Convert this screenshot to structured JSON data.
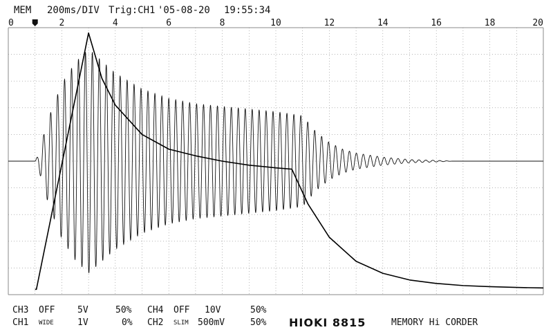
{
  "header": {
    "mode": "MEM",
    "timebase": "200ms/DIV",
    "trigger": "Trig:CH1",
    "date": "'05-08-20",
    "time": "19:55:34"
  },
  "chart_data": {
    "type": "line",
    "title": "",
    "xlabel": "",
    "ylabel": "",
    "x_ticks": [
      "0",
      "2",
      "4",
      "6",
      "8",
      "10",
      "12",
      "14",
      "16",
      "18",
      "20"
    ],
    "xlim": [
      0,
      20
    ],
    "ylim": [
      -5,
      5
    ],
    "grid": true,
    "trigger_position": 1,
    "series": [
      {
        "name": "CH1",
        "kind": "envelope",
        "description_values": {
          "x": [
            1.0,
            1.1,
            1.5,
            2.0,
            2.5,
            3.0,
            4.0,
            5.0,
            6.0,
            7.0,
            8.0,
            9.0,
            10.0,
            11.0,
            11.5,
            12.0,
            12.5,
            13.0,
            14.0,
            15.0,
            16.0,
            16.6,
            20.0
          ],
          "amplitude": [
            0,
            0.2,
            1.6,
            2.9,
            3.7,
            4.2,
            3.3,
            2.7,
            2.35,
            2.15,
            2.05,
            1.95,
            1.85,
            1.7,
            1.1,
            0.7,
            0.45,
            0.3,
            0.15,
            0.06,
            0.03,
            0,
            0
          ],
          "cycles_per_div": 3.85
        }
      },
      {
        "name": "CH2",
        "kind": "line",
        "x": [
          1.0,
          1.05,
          3.0,
          3.5,
          4.0,
          5.0,
          6.0,
          7.0,
          8.0,
          9.0,
          10.0,
          10.6,
          11.2,
          12.0,
          13.0,
          14.0,
          15.0,
          16.0,
          17.0,
          18.0,
          19.0,
          20.0
        ],
        "y": [
          -4.8,
          -4.8,
          4.8,
          3.1,
          2.1,
          1.0,
          0.45,
          0.2,
          0.0,
          -0.15,
          -0.25,
          -0.3,
          -1.6,
          -2.85,
          -3.75,
          -4.2,
          -4.45,
          -4.58,
          -4.66,
          -4.7,
          -4.73,
          -4.75
        ]
      }
    ]
  },
  "footer": {
    "row1": {
      "ch3_label": "CH3",
      "ch3_state": "OFF",
      "ch3_range": "5V",
      "ch3_pos": "50%",
      "ch4_label": "CH4",
      "ch4_state": "OFF",
      "ch4_range": "10V",
      "ch4_pos": "50%"
    },
    "row2": {
      "ch1_label": "CH1",
      "ch1_state": "WIDE",
      "ch1_range": "1V",
      "ch1_pos": "0%",
      "ch2_label": "CH2",
      "ch2_state": "SLIM",
      "ch2_range": "500mV",
      "ch2_pos": "50%"
    },
    "brand": "HIOKI 8815",
    "model_desc": "MEMORY Hi CORDER"
  }
}
